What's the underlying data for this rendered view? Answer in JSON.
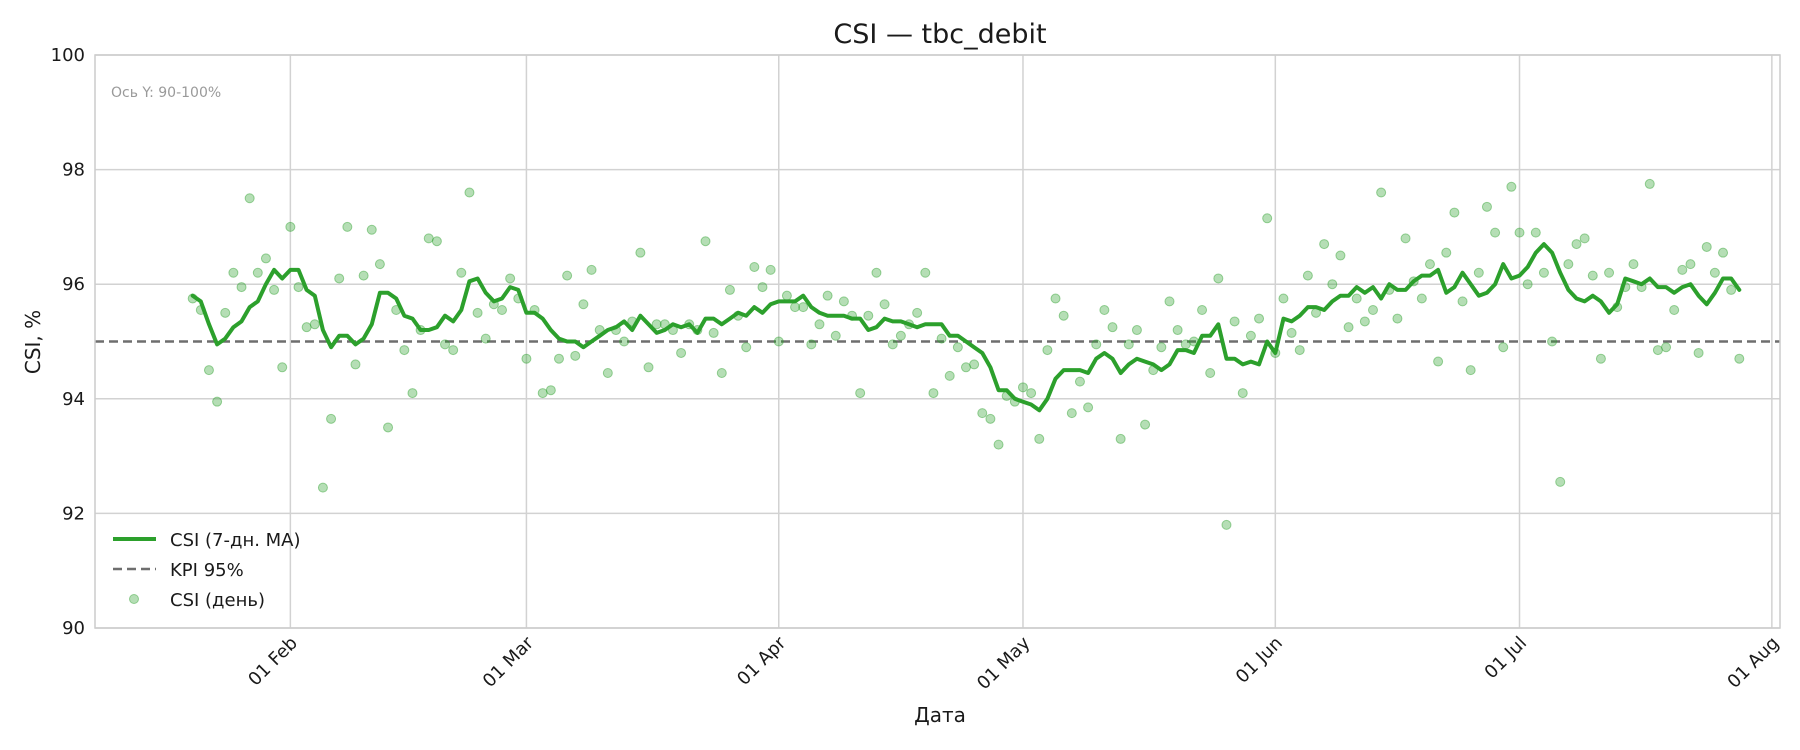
{
  "colors": {
    "series": "#2ca02c",
    "kpi": "#6e6e6e",
    "grid": "#d2d2d2",
    "frame": "#cccccc",
    "annotation": "#9a9a9a"
  },
  "chart_data": {
    "type": "line",
    "title": "CSI — tbc_debit",
    "xlabel": "Дата",
    "ylabel": "CSI, %",
    "ylim": [
      90,
      100
    ],
    "xlim": [
      "2024-01-08",
      "2024-08-02"
    ],
    "x_start": "2024-01-20",
    "grid": true,
    "legend_position": "lower-left",
    "annotation": "Ось Y: 90-100%",
    "yticks": [
      90,
      92,
      94,
      96,
      98,
      100
    ],
    "yticklabels": [
      "90",
      "92",
      "94",
      "96",
      "98",
      "100"
    ],
    "xticks": [
      {
        "date": "2024-02-01",
        "label": "01 Feb"
      },
      {
        "date": "2024-03-01",
        "label": "01 Mar"
      },
      {
        "date": "2024-04-01",
        "label": "01 Apr"
      },
      {
        "date": "2024-05-01",
        "label": "01 May"
      },
      {
        "date": "2024-06-01",
        "label": "01 Jun"
      },
      {
        "date": "2024-07-01",
        "label": "01 Jul"
      },
      {
        "date": "2024-08-01",
        "label": "01 Aug"
      }
    ],
    "kpi": {
      "name": "KPI 95%",
      "value": 95
    },
    "series": [
      {
        "name": "CSI (7-дн. MA)",
        "style": "line",
        "values": [
          95.8,
          95.7,
          95.3,
          94.95,
          95.05,
          95.25,
          95.35,
          95.6,
          95.7,
          96.0,
          96.25,
          96.1,
          96.25,
          96.25,
          95.9,
          95.8,
          95.2,
          94.9,
          95.1,
          95.1,
          94.95,
          95.05,
          95.3,
          95.85,
          95.85,
          95.75,
          95.45,
          95.4,
          95.2,
          95.2,
          95.25,
          95.45,
          95.35,
          95.55,
          96.05,
          96.1,
          95.85,
          95.7,
          95.75,
          95.95,
          95.9,
          95.5,
          95.5,
          95.4,
          95.2,
          95.05,
          95.0,
          95.0,
          94.9,
          95.0,
          95.1,
          95.2,
          95.25,
          95.35,
          95.2,
          95.45,
          95.3,
          95.15,
          95.2,
          95.3,
          95.25,
          95.3,
          95.15,
          95.4,
          95.4,
          95.3,
          95.4,
          95.5,
          95.45,
          95.6,
          95.5,
          95.65,
          95.7,
          95.7,
          95.7,
          95.8,
          95.6,
          95.5,
          95.45,
          95.45,
          95.45,
          95.4,
          95.4,
          95.2,
          95.25,
          95.4,
          95.35,
          95.35,
          95.3,
          95.25,
          95.3,
          95.3,
          95.3,
          95.1,
          95.1,
          95.0,
          94.9,
          94.8,
          94.55,
          94.15,
          94.15,
          94.0,
          93.95,
          93.9,
          93.8,
          94.0,
          94.35,
          94.5,
          94.5,
          94.5,
          94.45,
          94.7,
          94.8,
          94.7,
          94.45,
          94.6,
          94.7,
          94.65,
          94.6,
          94.5,
          94.6,
          94.85,
          94.85,
          94.8,
          95.1,
          95.1,
          95.3,
          94.7,
          94.7,
          94.6,
          94.65,
          94.6,
          95.0,
          94.8,
          95.4,
          95.35,
          95.45,
          95.6,
          95.6,
          95.55,
          95.7,
          95.8,
          95.8,
          95.95,
          95.85,
          95.95,
          95.75,
          96.0,
          95.9,
          95.9,
          96.05,
          96.15,
          96.15,
          96.25,
          95.85,
          95.95,
          96.2,
          96.0,
          95.8,
          95.85,
          96.0,
          96.35,
          96.1,
          96.15,
          96.3,
          96.55,
          96.7,
          96.55,
          96.2,
          95.9,
          95.75,
          95.7,
          95.8,
          95.7,
          95.5,
          95.65,
          96.1,
          96.05,
          96.0,
          96.1,
          95.95,
          95.95,
          95.85,
          95.95,
          96.0,
          95.8,
          95.65,
          95.85,
          96.1,
          96.1,
          95.9
        ]
      },
      {
        "name": "CSI (день)",
        "style": "scatter",
        "values": [
          95.75,
          95.55,
          94.5,
          93.95,
          95.5,
          96.2,
          95.95,
          97.5,
          96.2,
          96.45,
          95.9,
          94.55,
          97.0,
          95.95,
          95.25,
          95.3,
          92.45,
          93.65,
          96.1,
          97.0,
          94.6,
          96.15,
          96.95,
          96.35,
          93.5,
          95.55,
          94.85,
          94.1,
          95.2,
          96.8,
          96.75,
          94.95,
          94.85,
          96.2,
          97.6,
          95.5,
          95.05,
          95.65,
          95.55,
          96.1,
          95.75,
          94.7,
          95.55,
          94.1,
          94.15,
          94.7,
          96.15,
          94.75,
          95.65,
          96.25,
          95.2,
          94.45,
          95.2,
          95.0,
          95.35,
          96.55,
          94.55,
          95.3,
          95.3,
          95.2,
          94.8,
          95.3,
          95.2,
          96.75,
          95.15,
          94.45,
          95.9,
          95.45,
          94.9,
          96.3,
          95.95,
          96.25,
          95.0,
          95.8,
          95.6,
          95.6,
          94.95,
          95.3,
          95.8,
          95.1,
          95.7,
          95.45,
          94.1,
          95.45,
          96.2,
          95.65,
          94.95,
          95.1,
          95.3,
          95.5,
          96.2,
          94.1,
          95.05,
          94.4,
          94.9,
          94.55,
          94.6,
          93.75,
          93.65,
          93.2,
          94.05,
          93.95,
          94.2,
          94.1,
          93.3,
          94.85,
          95.75,
          95.45,
          93.75,
          94.3,
          93.85,
          94.95,
          95.55,
          95.25,
          93.3,
          94.95,
          95.2,
          93.55,
          94.5,
          94.9,
          95.7,
          95.2,
          94.95,
          95.0,
          95.55,
          94.45,
          96.1,
          91.8,
          95.35,
          94.1,
          95.1,
          95.4,
          97.15,
          94.8,
          95.75,
          95.15,
          94.85,
          96.15,
          95.5,
          96.7,
          96.0,
          96.5,
          95.25,
          95.75,
          95.35,
          95.55,
          97.6,
          95.9,
          95.4,
          96.8,
          96.05,
          95.75,
          96.35,
          94.65,
          96.55,
          97.25,
          95.7,
          94.5,
          96.2,
          97.35,
          96.9,
          94.9,
          97.7,
          96.9,
          96.0,
          96.9,
          96.2,
          95.0,
          92.55,
          96.35,
          96.7,
          96.8,
          96.15,
          94.7,
          96.2,
          95.6,
          95.95,
          96.35,
          95.95,
          97.75,
          94.85,
          94.9,
          95.55,
          96.25,
          96.35,
          94.8,
          96.65,
          96.2,
          96.55,
          95.9,
          94.7
        ]
      }
    ]
  },
  "legend": [
    {
      "label": "CSI (7-дн. MA)",
      "kind": "line"
    },
    {
      "label": "KPI 95%",
      "kind": "dashed"
    },
    {
      "label": "CSI (день)",
      "kind": "marker"
    }
  ]
}
